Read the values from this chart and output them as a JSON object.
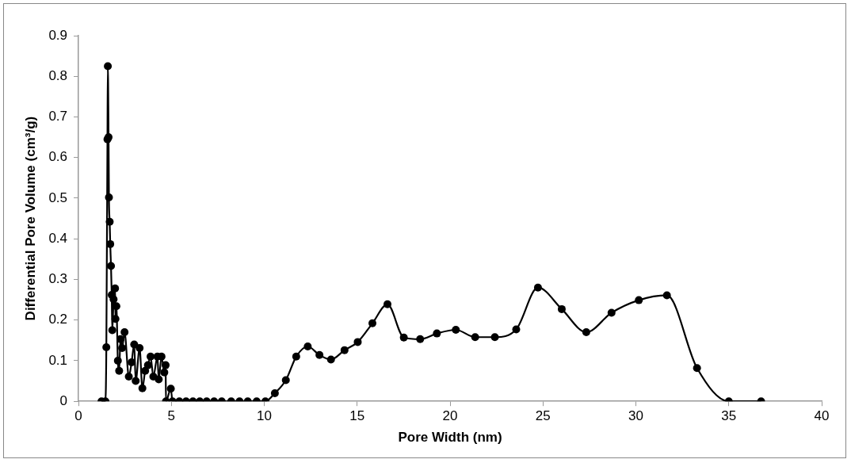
{
  "chart_data": {
    "type": "line",
    "xlabel": "Pore Width (nm)",
    "ylabel": "Differential Pore Volume (cm³/g)",
    "xlim": [
      0,
      40
    ],
    "ylim": [
      0,
      0.9
    ],
    "xticks": [
      0,
      5,
      10,
      15,
      20,
      25,
      30,
      35,
      40
    ],
    "yticks": [
      0,
      0.1,
      0.2,
      0.3,
      0.4,
      0.5,
      0.6,
      0.7,
      0.8,
      0.9
    ],
    "grid": false,
    "legend": false,
    "marker": "circle",
    "line_style": "solid",
    "series": [
      {
        "color": "#000000",
        "x": [
          1.24,
          1.45,
          1.5,
          1.56,
          1.58,
          1.62,
          1.64,
          1.68,
          1.71,
          1.75,
          1.79,
          1.82,
          1.89,
          1.97,
          1.99,
          2.04,
          2.12,
          2.19,
          2.26,
          2.35,
          2.48,
          2.71,
          2.86,
          3.0,
          3.08,
          3.29,
          3.44,
          3.59,
          3.74,
          3.88,
          4.03,
          4.25,
          4.32,
          4.47,
          4.62,
          4.69,
          4.71,
          4.97,
          5.06,
          5.43,
          5.79,
          6.16,
          6.53,
          6.9,
          7.3,
          7.71,
          8.22,
          8.67,
          9.11,
          9.59,
          10.06,
          10.57,
          11.16,
          11.72,
          12.34,
          12.97,
          13.59,
          14.32,
          15.03,
          15.82,
          16.63,
          17.51,
          18.39,
          19.29,
          20.31,
          21.35,
          22.41,
          23.56,
          24.73,
          26.01,
          27.33,
          28.69,
          30.16,
          31.67,
          33.29,
          35.0,
          36.74
        ],
        "values": [
          0,
          0,
          0.133,
          0.645,
          0.825,
          0.65,
          0.502,
          0.442,
          0.387,
          0.333,
          0.262,
          0.175,
          0.251,
          0.278,
          0.203,
          0.234,
          0.1,
          0.075,
          0.153,
          0.131,
          0.17,
          0.061,
          0.096,
          0.14,
          0.05,
          0.131,
          0.032,
          0.075,
          0.089,
          0.11,
          0.061,
          0.11,
          0.054,
          0.11,
          0.071,
          0.089,
          0,
          0.031,
          0,
          0,
          0,
          0,
          0,
          0,
          0,
          0,
          0,
          0,
          0,
          0,
          0,
          0.02,
          0.052,
          0.11,
          0.135,
          0.114,
          0.103,
          0.126,
          0.146,
          0.192,
          0.239,
          0.157,
          0.153,
          0.167,
          0.176,
          0.158,
          0.158,
          0.177,
          0.28,
          0.227,
          0.17,
          0.218,
          0.249,
          0.261,
          0.082,
          0,
          0
        ]
      }
    ]
  }
}
